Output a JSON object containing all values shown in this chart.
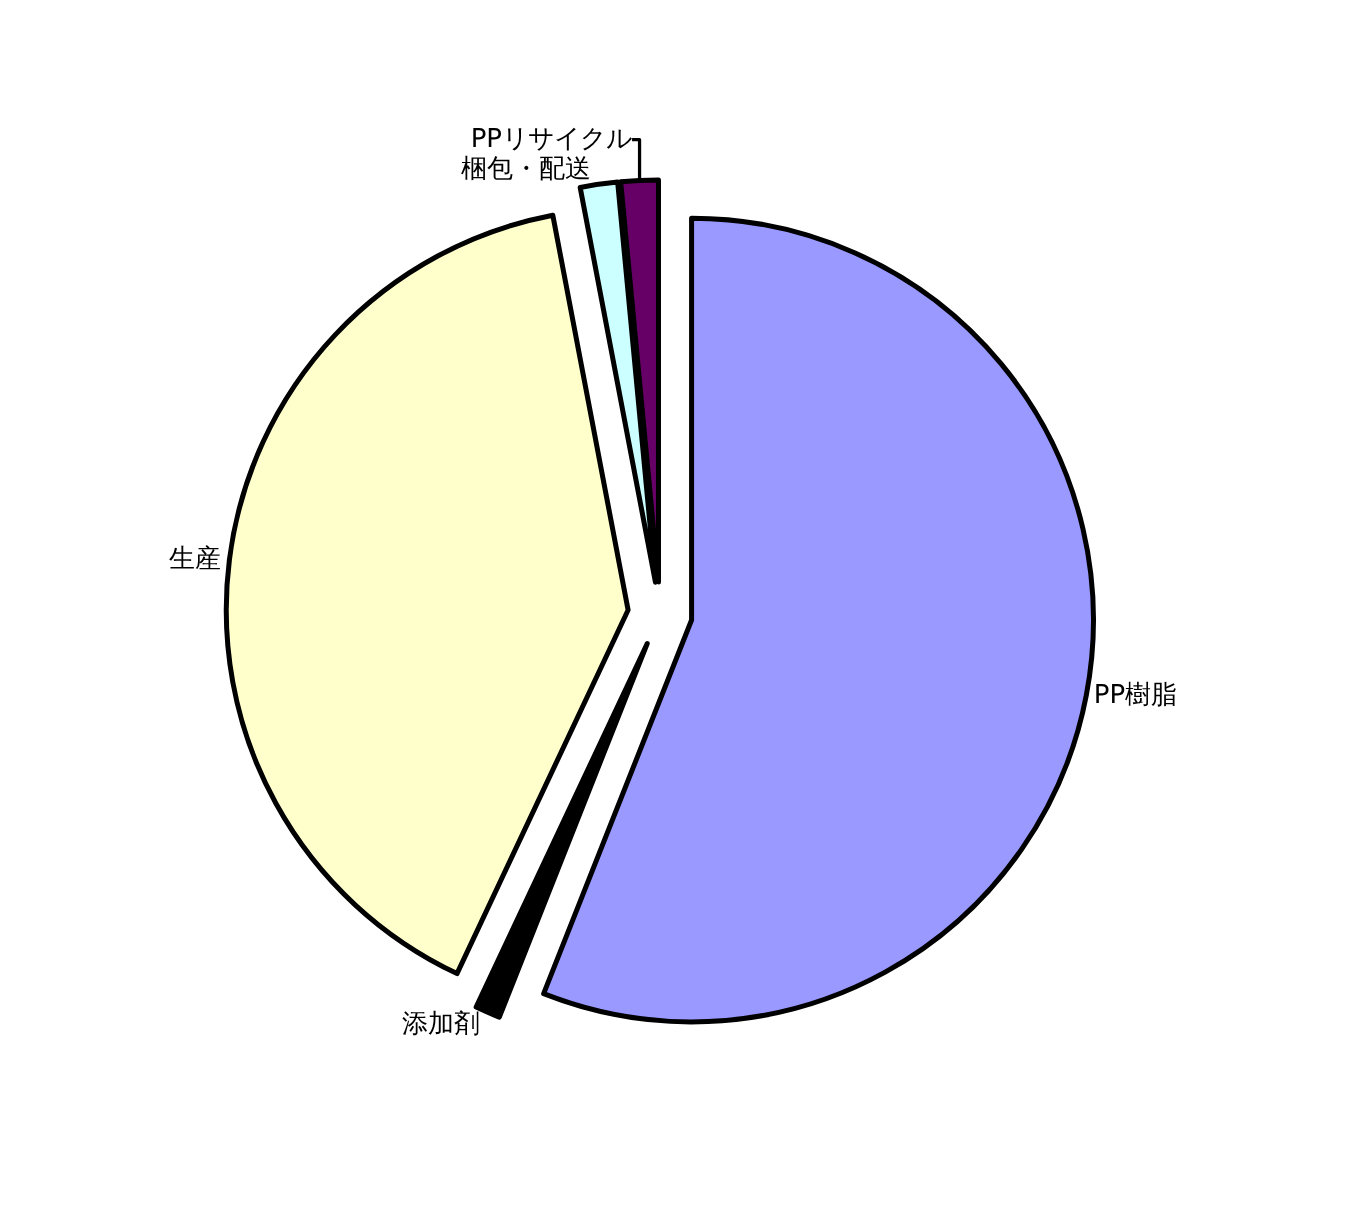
{
  "chart_data": {
    "type": "pie",
    "categories": [
      "PP樹脂",
      "添加剤",
      "生産",
      "梱包・配送",
      "PPリサイクル"
    ],
    "values": [
      56,
      1,
      40,
      1.5,
      1.5
    ],
    "colors": [
      "#9999ff",
      "#000000",
      "#ffffcc",
      "#ccffff",
      "#660066"
    ],
    "legend": false
  }
}
